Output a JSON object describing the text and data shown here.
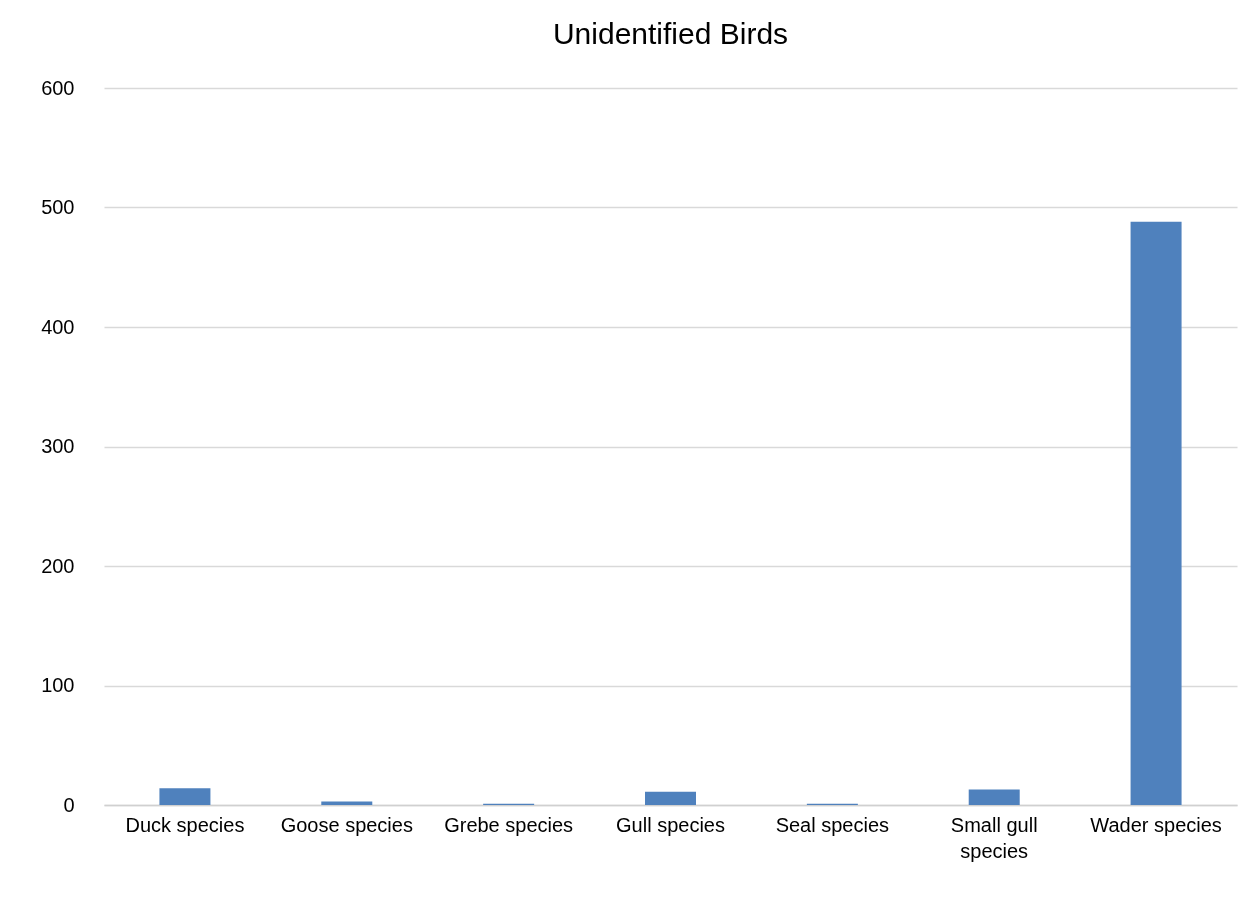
{
  "chart_data": {
    "type": "bar",
    "title": "Unidentified Birds",
    "categories": [
      "Duck species",
      "Goose species",
      "Grebe species",
      "Gull species",
      "Seal species",
      "Small gull species",
      "Wader species"
    ],
    "values": [
      14,
      3,
      1,
      11,
      1,
      13,
      488
    ],
    "color": "#4f81bd",
    "ylim": [
      0,
      600
    ],
    "yticks": [
      0,
      100,
      200,
      300,
      400,
      500,
      600
    ],
    "grid": true
  }
}
